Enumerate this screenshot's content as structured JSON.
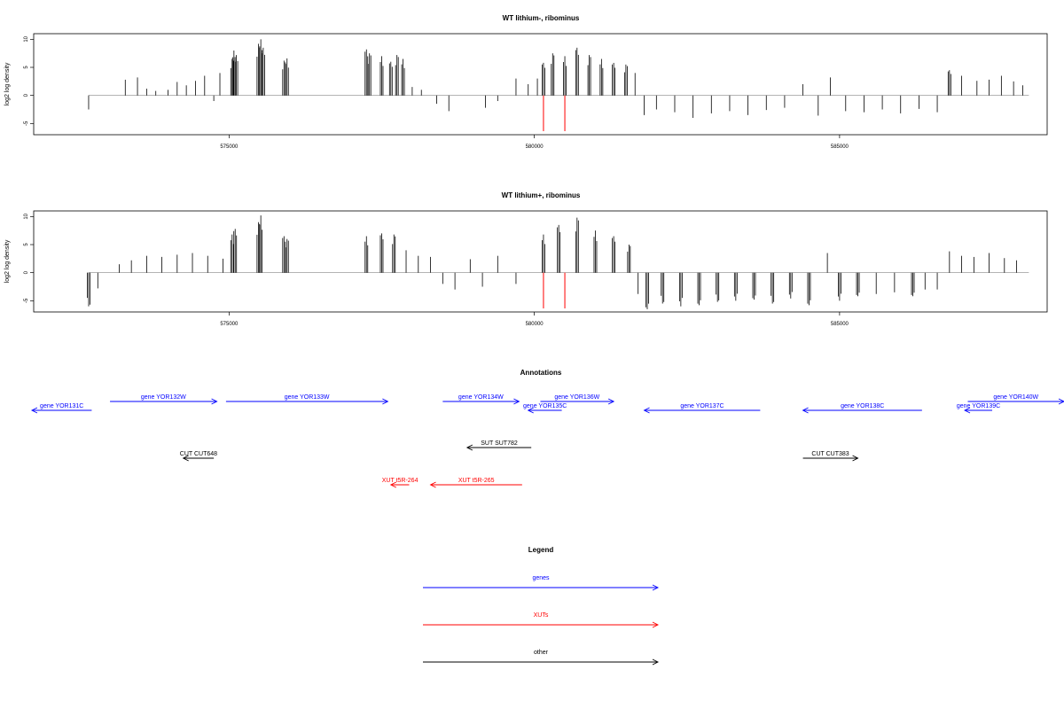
{
  "chart_data": [
    {
      "type": "bar",
      "title": "WT lithium-, ribominus",
      "ylabel": "log2 log density",
      "xlabel": "",
      "xlim": [
        571800,
        588400
      ],
      "ylim": [
        -7,
        11
      ],
      "yticks": [
        "10",
        "5",
        "0",
        "-5"
      ],
      "xticks": [
        "575000",
        "580000",
        "585000"
      ],
      "grid": false,
      "red_markers_x": [
        580150,
        580500
      ],
      "series": [
        {
          "values": [
            [
              572700,
              -2.5
            ],
            [
              573300,
              2.8
            ],
            [
              573500,
              3.2
            ],
            [
              573650,
              1.2
            ],
            [
              573800,
              0.8
            ],
            [
              574000,
              1.0
            ],
            [
              574150,
              2.4
            ],
            [
              574300,
              1.8
            ],
            [
              574450,
              2.6
            ],
            [
              574600,
              3.5
            ],
            [
              574750,
              -1.0
            ],
            [
              574850,
              4.0
            ],
            [
              575050,
              6.5
            ],
            [
              575080,
              8.0
            ],
            [
              575120,
              7.2
            ],
            [
              575480,
              9.2
            ],
            [
              575520,
              10.0
            ],
            [
              575560,
              8.5
            ],
            [
              575900,
              6.2
            ],
            [
              575950,
              6.6
            ],
            [
              577250,
              8.2
            ],
            [
              577300,
              7.5
            ],
            [
              577500,
              7.0
            ],
            [
              577650,
              6.0
            ],
            [
              577750,
              7.2
            ],
            [
              577850,
              6.5
            ],
            [
              578000,
              1.5
            ],
            [
              578150,
              1.0
            ],
            [
              578400,
              -1.5
            ],
            [
              578600,
              -2.8
            ],
            [
              579200,
              -2.2
            ],
            [
              579400,
              -1.0
            ],
            [
              579700,
              3.0
            ],
            [
              579900,
              2.0
            ],
            [
              580050,
              3.0
            ],
            [
              580150,
              5.8
            ],
            [
              580300,
              7.5
            ],
            [
              580500,
              7.0
            ],
            [
              580700,
              8.5
            ],
            [
              580900,
              7.2
            ],
            [
              581100,
              6.5
            ],
            [
              581300,
              5.8
            ],
            [
              581500,
              5.5
            ],
            [
              581650,
              4.0
            ],
            [
              581800,
              -3.5
            ],
            [
              582000,
              -2.5
            ],
            [
              582300,
              -3.0
            ],
            [
              582600,
              -4.0
            ],
            [
              582900,
              -3.2
            ],
            [
              583200,
              -2.8
            ],
            [
              583500,
              -3.5
            ],
            [
              583800,
              -2.6
            ],
            [
              584100,
              -2.2
            ],
            [
              584400,
              2.0
            ],
            [
              584650,
              -3.6
            ],
            [
              584850,
              3.2
            ],
            [
              585100,
              -2.8
            ],
            [
              585400,
              -3.0
            ],
            [
              585700,
              -2.5
            ],
            [
              586000,
              -3.2
            ],
            [
              586300,
              -2.4
            ],
            [
              586600,
              -3.0
            ],
            [
              586800,
              4.5
            ],
            [
              587000,
              3.5
            ],
            [
              587250,
              2.6
            ],
            [
              587450,
              2.8
            ],
            [
              587650,
              3.5
            ],
            [
              587850,
              2.5
            ],
            [
              588000,
              1.8
            ]
          ]
        }
      ]
    },
    {
      "type": "bar",
      "title": "WT lithium+, ribominus",
      "ylabel": "log2 log density",
      "xlabel": "",
      "xlim": [
        571800,
        588400
      ],
      "ylim": [
        -7,
        11
      ],
      "yticks": [
        "10",
        "5",
        "0",
        "-5"
      ],
      "xticks": [
        "575000",
        "580000",
        "585000"
      ],
      "grid": false,
      "red_markers_x": [
        580150,
        580500
      ],
      "series": [
        {
          "values": [
            [
              572700,
              -6.0
            ],
            [
              572850,
              -2.8
            ],
            [
              573200,
              1.5
            ],
            [
              573400,
              2.2
            ],
            [
              573650,
              3.0
            ],
            [
              573900,
              2.8
            ],
            [
              574150,
              3.2
            ],
            [
              574400,
              3.5
            ],
            [
              574650,
              3.0
            ],
            [
              574900,
              2.5
            ],
            [
              575050,
              6.8
            ],
            [
              575100,
              7.8
            ],
            [
              575480,
              9.0
            ],
            [
              575520,
              10.2
            ],
            [
              575900,
              6.5
            ],
            [
              575950,
              6.0
            ],
            [
              577250,
              6.5
            ],
            [
              577500,
              7.0
            ],
            [
              577700,
              6.8
            ],
            [
              577900,
              4.0
            ],
            [
              578100,
              3.0
            ],
            [
              578300,
              2.8
            ],
            [
              578500,
              -2.0
            ],
            [
              578700,
              -3.0
            ],
            [
              578950,
              2.4
            ],
            [
              579150,
              -2.5
            ],
            [
              579400,
              3.0
            ],
            [
              579700,
              -2.0
            ],
            [
              580150,
              6.8
            ],
            [
              580400,
              8.5
            ],
            [
              580700,
              9.8
            ],
            [
              581000,
              7.5
            ],
            [
              581300,
              6.5
            ],
            [
              581550,
              5.0
            ],
            [
              581700,
              -3.8
            ],
            [
              581850,
              -6.5
            ],
            [
              582100,
              -5.5
            ],
            [
              582400,
              -6.0
            ],
            [
              582700,
              -5.8
            ],
            [
              583000,
              -5.2
            ],
            [
              583300,
              -5.0
            ],
            [
              583600,
              -4.8
            ],
            [
              583900,
              -5.5
            ],
            [
              584200,
              -4.6
            ],
            [
              584500,
              -5.8
            ],
            [
              584800,
              3.5
            ],
            [
              585000,
              -5.0
            ],
            [
              585300,
              -4.2
            ],
            [
              585600,
              -3.8
            ],
            [
              585900,
              -3.5
            ],
            [
              586200,
              -4.2
            ],
            [
              586400,
              -3.0
            ],
            [
              586600,
              -3.0
            ],
            [
              586800,
              3.8
            ],
            [
              587000,
              3.0
            ],
            [
              587200,
              2.8
            ],
            [
              587450,
              3.5
            ],
            [
              587700,
              2.6
            ],
            [
              587900,
              2.2
            ]
          ]
        }
      ]
    }
  ],
  "annotations": {
    "title": "Annotations",
    "features": [
      {
        "label": "gene YOR131C",
        "color": "#0000ff",
        "x1": 570000,
        "x2": 572750,
        "strand": "-",
        "row": 1
      },
      {
        "label": "gene YOR132W",
        "color": "#0000ff",
        "x1": 573050,
        "x2": 574800,
        "strand": "+",
        "row": 0
      },
      {
        "label": "gene YOR133W",
        "color": "#0000ff",
        "x1": 574950,
        "x2": 577600,
        "strand": "+",
        "row": 0
      },
      {
        "label": "gene YOR134W",
        "color": "#0000ff",
        "x1": 578500,
        "x2": 579750,
        "strand": "+",
        "row": 0
      },
      {
        "label": "gene YOR135C",
        "color": "#0000ff",
        "x1": 579900,
        "x2": 580450,
        "strand": "-",
        "row": 1
      },
      {
        "label": "gene YOR136W",
        "color": "#0000ff",
        "x1": 580100,
        "x2": 581300,
        "strand": "+",
        "row": 0
      },
      {
        "label": "gene YOR137C",
        "color": "#0000ff",
        "x1": 581800,
        "x2": 583700,
        "strand": "-",
        "row": 1
      },
      {
        "label": "gene YOR138C",
        "color": "#0000ff",
        "x1": 584400,
        "x2": 586350,
        "strand": "-",
        "row": 1
      },
      {
        "label": "gene YOR139C",
        "color": "#0000ff",
        "x1": 587050,
        "x2": 587500,
        "strand": "-",
        "row": 1
      },
      {
        "label": "gene YOR140W",
        "color": "#0000ff",
        "x1": 587100,
        "x2": 590000,
        "strand": "+",
        "row": 0
      },
      {
        "label": "SUT SUT782",
        "color": "#000000",
        "x1": 578900,
        "x2": 579950,
        "strand": "-",
        "row": 2
      },
      {
        "label": "CUT CUT648",
        "color": "#000000",
        "x1": 574250,
        "x2": 574750,
        "strand": "-",
        "row": 3
      },
      {
        "label": "CUT CUT383",
        "color": "#000000",
        "x1": 584400,
        "x2": 585300,
        "strand": "+",
        "row": 3
      },
      {
        "label": "XUT t5R-264",
        "color": "#ff0000",
        "x1": 577650,
        "x2": 577950,
        "strand": "-",
        "row": 4
      },
      {
        "label": "XUT t5R-265",
        "color": "#ff0000",
        "x1": 578300,
        "x2": 579800,
        "strand": "-",
        "row": 4
      }
    ]
  },
  "legend": {
    "title": "Legend",
    "items": [
      {
        "label": "genes",
        "color": "#0000ff"
      },
      {
        "label": "XUTs",
        "color": "#ff0000"
      },
      {
        "label": "other",
        "color": "#000000"
      }
    ]
  }
}
